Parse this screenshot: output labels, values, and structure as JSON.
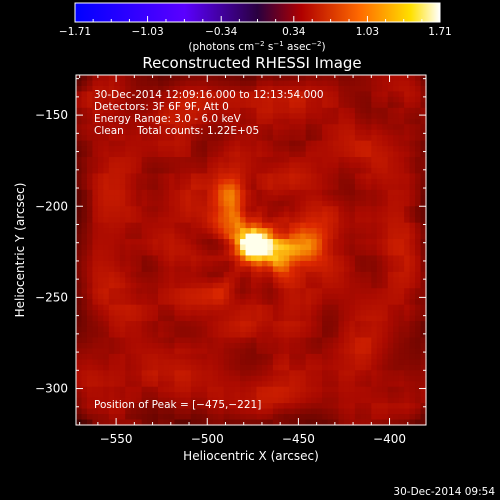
{
  "chart_data": {
    "type": "heatmap",
    "title": "Reconstructed RHESSI Image",
    "xlabel": "Heliocentric X (arcsec)",
    "ylabel": "Heliocentric Y (arcsec)",
    "xlim": [
      -572,
      -380
    ],
    "ylim": [
      -320,
      -128
    ],
    "x_ticks": [
      -550,
      -500,
      -450,
      -400
    ],
    "y_ticks": [
      -150,
      -200,
      -250,
      -300
    ],
    "x_tick_labels": [
      "−550",
      "−500",
      "−450",
      "−400"
    ],
    "y_tick_labels": [
      "−150",
      "−200",
      "−250",
      "−300"
    ],
    "colorbar": {
      "min": -1.71,
      "max": 1.71,
      "ticks": [
        -1.71,
        -1.03,
        -0.34,
        0.34,
        1.03,
        1.71
      ],
      "tick_labels": [
        "−1.71",
        "−1.03",
        "−0.34",
        "0.34",
        "1.03",
        "1.71"
      ],
      "units_prefix": "(photons cm",
      "units_exp1": "−2",
      "units_mid": " s",
      "units_exp2": "−1",
      "units_mid2": " asec",
      "units_exp3": "−2",
      "units_suffix": ")"
    },
    "annotations": [
      "30-Dec-2014 12:09:16.000 to 12:13:54.000",
      "Detectors: 3F 6F 9F, Att 0",
      "Energy Range: 3.0 - 6.0 keV",
      "Clean    Total counts: 1.22E+05"
    ],
    "peak_label": "Position of Peak = [−475,−221]",
    "peak": {
      "x": -475,
      "y": -221
    },
    "background_level": 0.55,
    "sources": [
      {
        "x": -475,
        "y": -221,
        "sigma": 7,
        "amp": 1.15
      },
      {
        "x": -458,
        "y": -226,
        "sigma": 9,
        "amp": 0.75
      },
      {
        "x": -443,
        "y": -218,
        "sigma": 7,
        "amp": 0.45
      },
      {
        "x": -488,
        "y": -207,
        "sigma": 7,
        "amp": 0.6
      },
      {
        "x": -488,
        "y": -193,
        "sigma": 6,
        "amp": 0.45
      },
      {
        "x": -492,
        "y": -248,
        "sigma": 5,
        "amp": 0.25
      }
    ],
    "colormap": "black-red-yellow-white",
    "colorbar_colormap": "blue-purple-red-yellow-white"
  },
  "footer_timestamp": "30-Dec-2014 09:54"
}
